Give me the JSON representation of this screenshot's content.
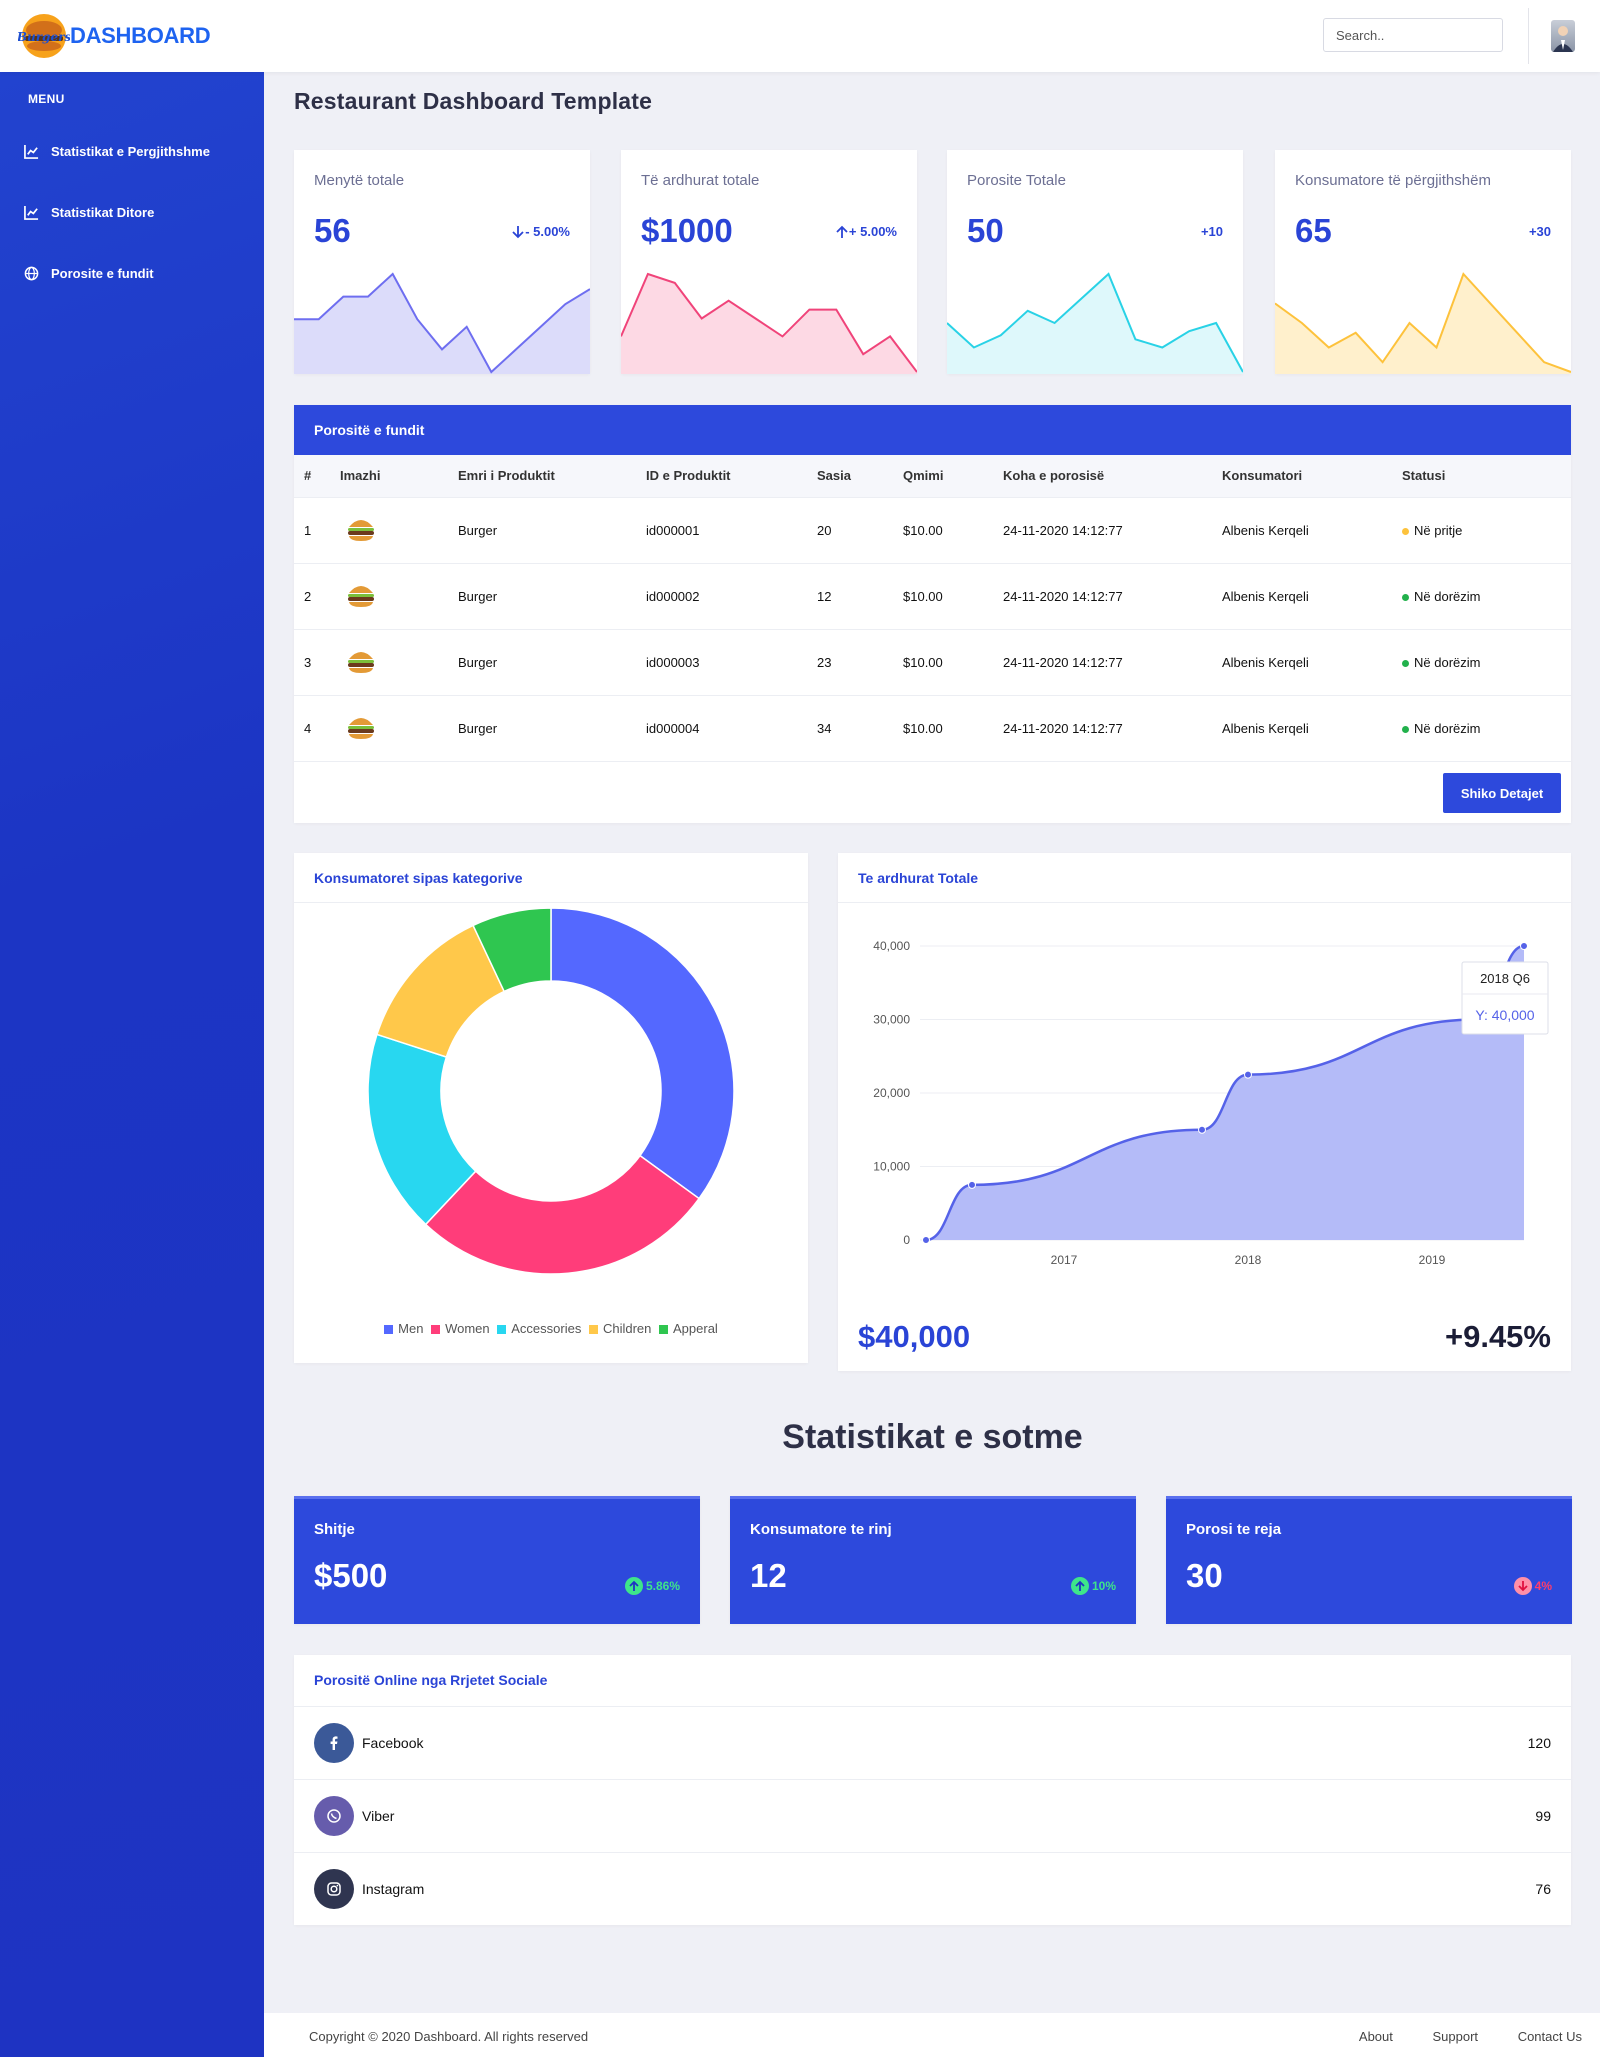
{
  "header": {
    "logo_mark": "Burgers",
    "logo_text": "DASHBOARD",
    "search_placeholder": "Search.."
  },
  "sidebar": {
    "menu_title": "MENU",
    "items": [
      {
        "label": "Statistikat e Pergjithshme",
        "icon": "chart-line-icon"
      },
      {
        "label": "Statistikat Ditore",
        "icon": "chart-line-icon"
      },
      {
        "label": "Porosite e fundit",
        "icon": "globe-icon"
      }
    ]
  },
  "page_title": "Restaurant Dashboard Template",
  "stat_cards": [
    {
      "label": "Menytë totale",
      "value": "56",
      "change": "- 5.00%",
      "trend": "down",
      "color": "#6e6ef0",
      "fill": "#dcdcfa",
      "spark": [
        6,
        6,
        9,
        9,
        12,
        6,
        2,
        5,
        -1,
        2,
        5,
        8,
        10
      ]
    },
    {
      "label": "Të ardhurat totale",
      "value": "$1000",
      "change": "+ 5.00%",
      "trend": "up",
      "color": "#f0447a",
      "fill": "#fdd9e4",
      "spark": [
        4,
        11,
        10,
        6,
        8,
        6,
        4,
        7,
        7,
        2,
        4,
        0
      ]
    },
    {
      "label": "Porosite Totale",
      "value": "50",
      "change": "+10",
      "trend": "none",
      "color": "#29d2e6",
      "fill": "#def8fb",
      "spark": [
        6,
        3,
        4.5,
        7.5,
        6,
        9,
        12,
        4,
        3,
        5,
        6,
        0
      ]
    },
    {
      "label": "Konsumatore të përgjithshëm",
      "value": "65",
      "change": "+30",
      "trend": "none",
      "color": "#fdc23c",
      "fill": "#fff0cc",
      "spark": [
        7,
        5,
        2.5,
        4,
        1,
        5,
        2.5,
        10,
        7,
        4,
        1,
        0
      ]
    }
  ],
  "orders": {
    "title": "Porositë e fundit",
    "columns": [
      "#",
      "Imazhi",
      "Emri i Produktit",
      "ID e Produktit",
      "Sasia",
      "Qmimi",
      "Koha e porosisë",
      "Konsumatori",
      "Statusi"
    ],
    "rows": [
      {
        "n": "1",
        "name": "Burger",
        "id": "id000001",
        "qty": "20",
        "price": "$10.00",
        "time": "24-11-2020 14:12:77",
        "customer": "Albenis Kerqeli",
        "status": "Në pritje",
        "status_color": "#fdc23c"
      },
      {
        "n": "2",
        "name": "Burger",
        "id": "id000002",
        "qty": "12",
        "price": "$10.00",
        "time": "24-11-2020 14:12:77",
        "customer": "Albenis Kerqeli",
        "status": "Në dorëzim",
        "status_color": "#22b14c"
      },
      {
        "n": "3",
        "name": "Burger",
        "id": "id000003",
        "qty": "23",
        "price": "$10.00",
        "time": "24-11-2020 14:12:77",
        "customer": "Albenis Kerqeli",
        "status": "Në dorëzim",
        "status_color": "#22b14c"
      },
      {
        "n": "4",
        "name": "Burger",
        "id": "id000004",
        "qty": "34",
        "price": "$10.00",
        "time": "24-11-2020 14:12:77",
        "customer": "Albenis Kerqeli",
        "status": "Në dorëzim",
        "status_color": "#22b14c"
      }
    ],
    "details_button": "Shiko Detajet"
  },
  "donut": {
    "title": "Konsumatoret sipas kategorive",
    "slices": [
      {
        "name": "Men",
        "value": 35,
        "color": "#5468ff"
      },
      {
        "name": "Women",
        "value": 27,
        "color": "#ff3d7a"
      },
      {
        "name": "Accessories",
        "value": 18,
        "color": "#28d7f0"
      },
      {
        "name": "Children",
        "value": 13,
        "color": "#ffc84a"
      },
      {
        "name": "Apperal",
        "value": 7,
        "color": "#2fc650"
      }
    ]
  },
  "revenue_chart": {
    "title": "Te ardhurat Totale",
    "y_ticks": [
      "0",
      "10,000",
      "20,000",
      "30,000",
      "40,000"
    ],
    "x_ticks": [
      "2017",
      "2018",
      "2019"
    ],
    "points": [
      [
        0.0,
        0
      ],
      [
        0.25,
        7500
      ],
      [
        1.5,
        15000
      ],
      [
        1.75,
        22500
      ],
      [
        3.0,
        30000
      ],
      [
        3.25,
        40000
      ]
    ],
    "tooltip_title": "2018 Q6",
    "tooltip_value": "Y: 40,000",
    "total": "$40,000",
    "change": "+9.45%"
  },
  "today": {
    "title": "Statistikat e sotme",
    "cards": [
      {
        "label": "Shitje",
        "value": "$500",
        "change": "5.86%",
        "trend": "up"
      },
      {
        "label": "Konsumatore te rinj",
        "value": "12",
        "change": "10%",
        "trend": "up"
      },
      {
        "label": "Porosi te reja",
        "value": "30",
        "change": "4%",
        "trend": "down"
      }
    ]
  },
  "social": {
    "title": "Porositë Online nga Rrjetet Sociale",
    "rows": [
      {
        "name": "Facebook",
        "count": "120",
        "color": "#3b5998",
        "icon": "facebook-icon"
      },
      {
        "name": "Viber",
        "count": "99",
        "color": "#665cac",
        "icon": "viber-icon"
      },
      {
        "name": "Instagram",
        "count": "76",
        "color": "#2f3550",
        "icon": "instagram-icon"
      }
    ]
  },
  "footer": {
    "copyright": "Copyright © 2020 Dashboard. All rights reserved",
    "links": [
      "About",
      "Support",
      "Contact Us"
    ]
  }
}
